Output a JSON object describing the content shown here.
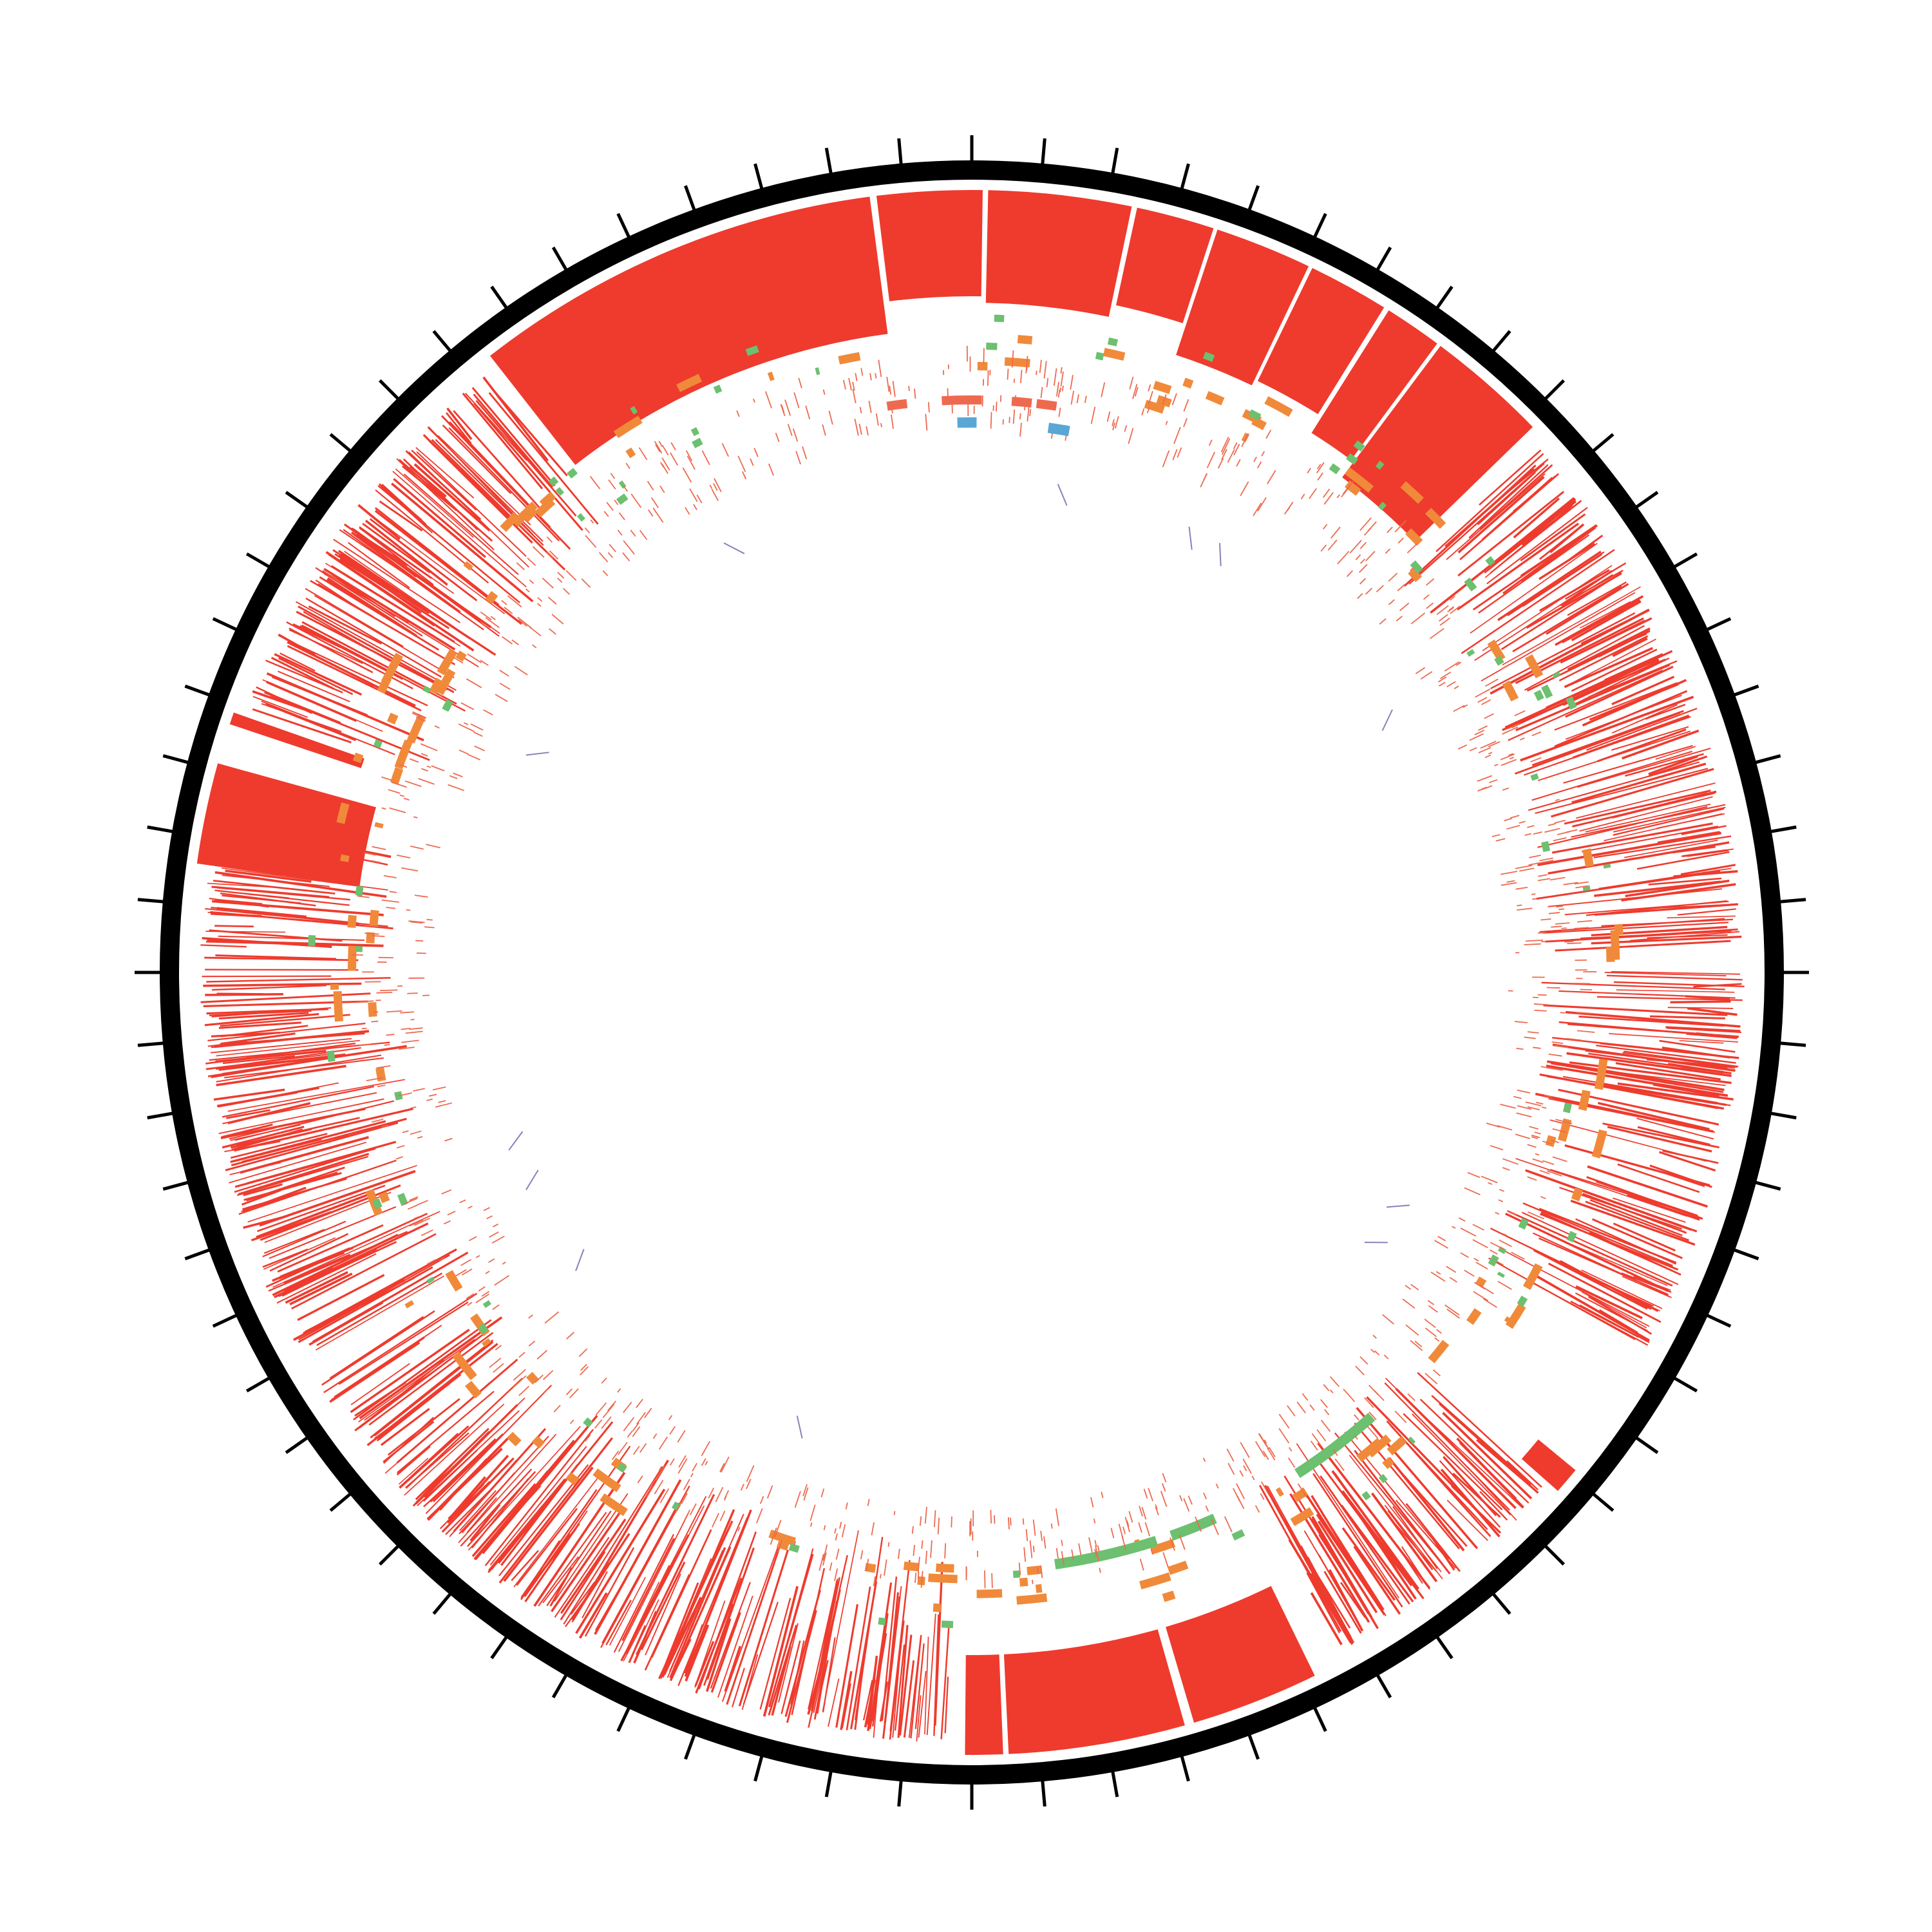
{
  "colors": {
    "background": "#ffffff",
    "ideogram": "#000000",
    "tick": "#000000",
    "outer_track": "#ee3b2e",
    "repeat_track": "#f08a3a",
    "green_track": "#6cc070",
    "inner_track": "#ee6a4f",
    "blue_track": "#5aa7d6",
    "link": "#8d7fb9"
  },
  "diagram": {
    "type": "circos",
    "tick_count": 72,
    "outer_blocks_deg": [
      [
        -38.0,
        -7.5
      ],
      [
        -7.0,
        0.8
      ],
      [
        1.2,
        11.8
      ],
      [
        12.2,
        18.0
      ],
      [
        18.3,
        25.5
      ],
      [
        25.8,
        31.8
      ],
      [
        32.2,
        36.5
      ],
      [
        36.8,
        45.8
      ],
      [
        154.0,
        163.5
      ],
      [
        164.2,
        177.3
      ],
      [
        177.7,
        180.5
      ],
      [
        -82.0,
        -74.5
      ],
      [
        -71.5,
        -70.6
      ],
      [
        129.5,
        131.5
      ]
    ],
    "outer_line_sectors_deg": [
      [
        -70.0,
        -39.0
      ],
      [
        47.0,
        88.0
      ],
      [
        90.0,
        119.0
      ],
      [
        132.0,
        152.0
      ],
      [
        182.0,
        210.0
      ],
      [
        210.0,
        238.0
      ],
      [
        240.0,
        270.0
      ],
      [
        270.0,
        283.0
      ]
    ],
    "repeat_sectors_deg": [
      [
        -80,
        180
      ],
      [
        180,
        280
      ]
    ],
    "green_arcs_deg": [
      [
        138.0,
        147.0
      ],
      [
        156.0,
        160.5
      ],
      [
        162.0,
        172.0
      ]
    ],
    "blue_marks_deg": [
      [
        -1.5,
        0.5
      ],
      [
        8.0,
        10.2
      ]
    ],
    "link_count": 12
  }
}
